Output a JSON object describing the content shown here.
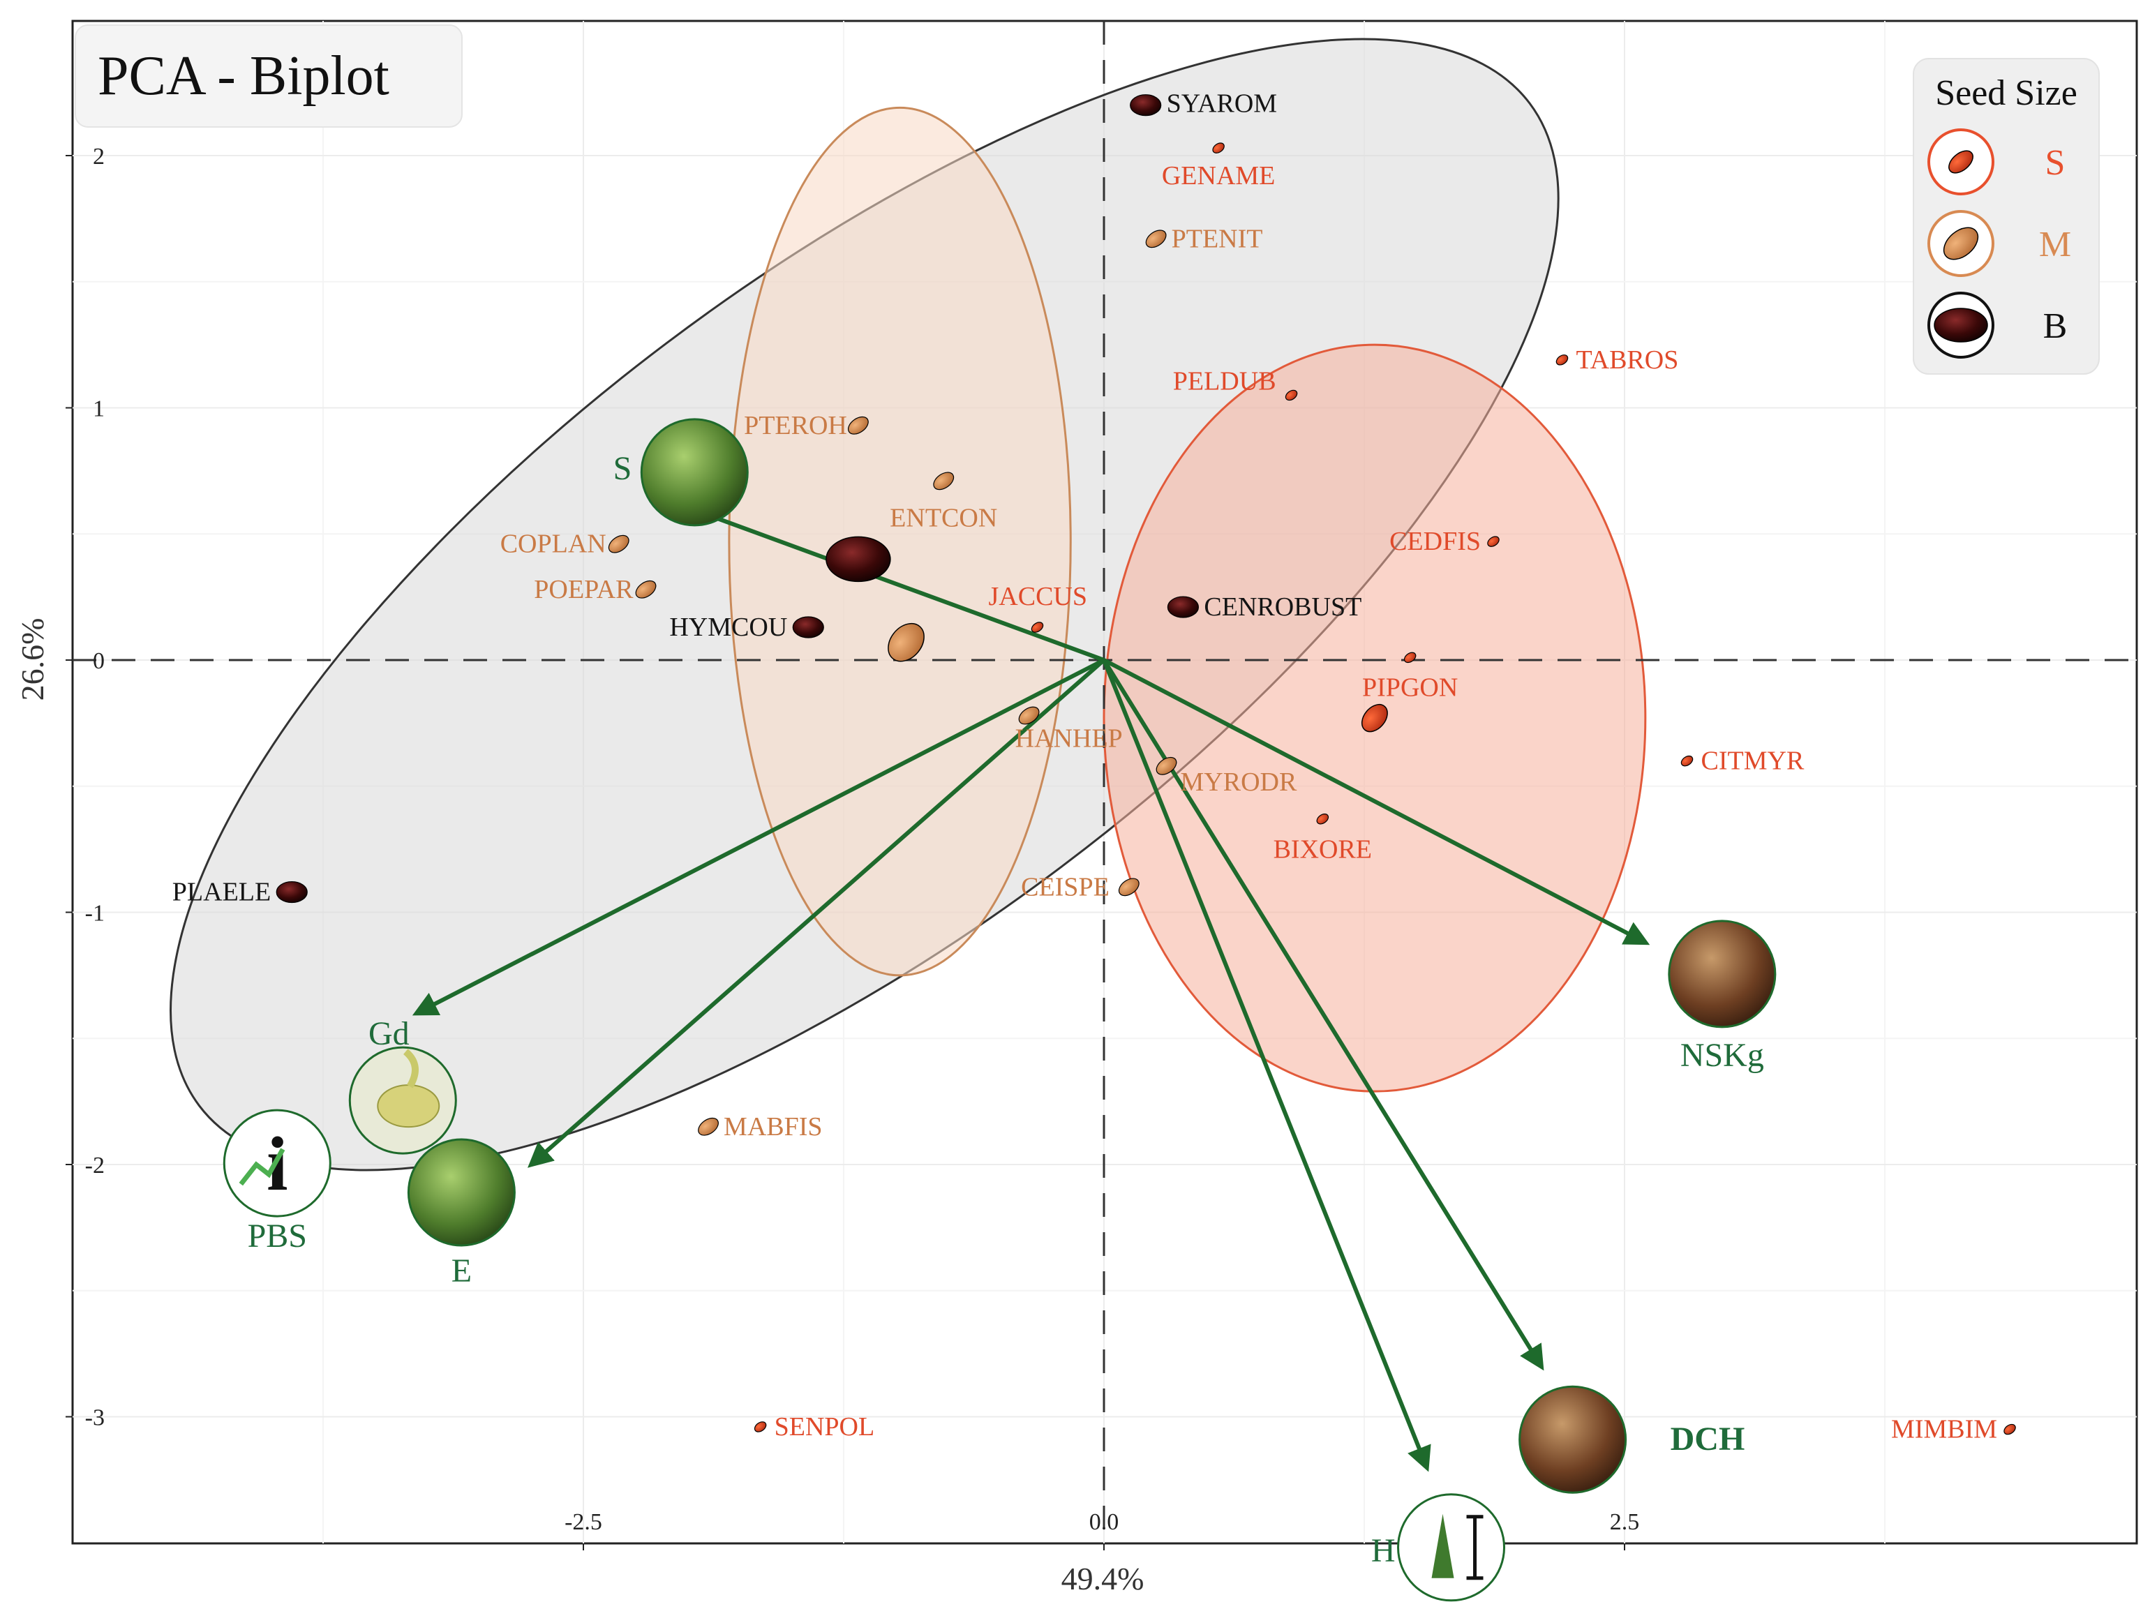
{
  "chart_data": {
    "type": "scatter",
    "title": "PCA - Biplot",
    "xlabel": "49.4%",
    "ylabel": "26.6%",
    "xlim": [
      -5,
      5
    ],
    "ylim": [
      -3.5,
      2.35
    ],
    "xticks": [
      -2.5,
      0.0,
      2.5
    ],
    "xtick_labels": [
      "-2.5",
      "0.0",
      "2.5"
    ],
    "yticks": [
      2,
      1,
      0,
      -1,
      -2,
      -3
    ],
    "ytick_labels": [
      "2",
      "1",
      "0",
      "-1",
      "-2",
      "-3"
    ],
    "legend": {
      "title": "Seed Size",
      "position": "top-right",
      "entries": [
        {
          "key": "S",
          "label": "S",
          "color": "#e8502d"
        },
        {
          "key": "M",
          "label": "M",
          "color": "#d88a52"
        },
        {
          "key": "B",
          "label": "B",
          "color": "#111111"
        }
      ]
    },
    "colors": {
      "S": "#e04a2a",
      "M": "#c97a45",
      "B": "#141414",
      "arrow": "#1e6a2c",
      "dch": "#ff7a1a"
    },
    "points": [
      {
        "label": "SYAROM",
        "x": 0.2,
        "y": 2.2,
        "size": "B"
      },
      {
        "label": "GENAME",
        "x": 0.55,
        "y": 2.03,
        "size": "S"
      },
      {
        "label": "PTENIT",
        "x": 0.25,
        "y": 1.67,
        "size": "M"
      },
      {
        "label": "TABROS",
        "x": 2.2,
        "y": 1.19,
        "size": "S"
      },
      {
        "label": "PELDUB",
        "x": 0.9,
        "y": 1.05,
        "size": "S"
      },
      {
        "label": "PTEROH",
        "x": -1.18,
        "y": 0.93,
        "size": "M"
      },
      {
        "label": "ENTCON",
        "x": -0.77,
        "y": 0.71,
        "size": "M"
      },
      {
        "label": "COPLAN",
        "x": -2.33,
        "y": 0.46,
        "size": "M"
      },
      {
        "label": "CEDFIS",
        "x": 1.87,
        "y": 0.47,
        "size": "S"
      },
      {
        "label": "POEPAR",
        "x": -2.2,
        "y": 0.28,
        "size": "M"
      },
      {
        "label": "JACCUS",
        "x": -0.32,
        "y": 0.13,
        "size": "S"
      },
      {
        "label": "CENROBUST",
        "x": 0.38,
        "y": 0.21,
        "size": "B"
      },
      {
        "label": "HYMCOU",
        "x": -1.42,
        "y": 0.13,
        "size": "B"
      },
      {
        "label": "PIPGON",
        "x": 1.47,
        "y": 0.01,
        "size": "S"
      },
      {
        "label": "HANHEP",
        "x": -0.36,
        "y": -0.22,
        "size": "M"
      },
      {
        "label": "MYRODR",
        "x": 0.3,
        "y": -0.42,
        "size": "M"
      },
      {
        "label": "CITMYR",
        "x": 2.8,
        "y": -0.4,
        "size": "S"
      },
      {
        "label": "BIXORE",
        "x": 1.05,
        "y": -0.63,
        "size": "S"
      },
      {
        "label": "CEISPE",
        "x": 0.12,
        "y": -0.9,
        "size": "M"
      },
      {
        "label": "PLAELE",
        "x": -3.9,
        "y": -0.92,
        "size": "B"
      },
      {
        "label": "MABFIS",
        "x": -1.9,
        "y": -1.85,
        "size": "M"
      },
      {
        "label": "SENPOL",
        "x": -1.65,
        "y": -3.04,
        "size": "S"
      },
      {
        "label": "MIMBIM",
        "x": 4.35,
        "y": -3.05,
        "size": "S"
      }
    ],
    "centroids": [
      {
        "group": "B",
        "x": -1.18,
        "y": 0.4
      },
      {
        "group": "M",
        "x": -0.95,
        "y": 0.07
      },
      {
        "group": "S",
        "x": 1.3,
        "y": -0.23
      }
    ],
    "ellipses": [
      {
        "group": "B",
        "cx": -1.15,
        "cy": 0.22,
        "a": 4.0,
        "b": 1.3,
        "angle_deg": 37,
        "fill": "#d9d9d9",
        "stroke": "#333333"
      },
      {
        "group": "M",
        "cx": -0.98,
        "cy": 0.47,
        "a": 0.82,
        "b": 1.72,
        "angle_deg": 0,
        "fill": "#f7d9c4",
        "stroke": "#c98a5a"
      },
      {
        "group": "S",
        "cx": 1.3,
        "cy": -0.23,
        "a": 1.3,
        "b": 1.48,
        "angle_deg": 0,
        "fill": "#f5b09c",
        "stroke": "#e25a3a"
      }
    ],
    "vectors": [
      {
        "label": "S",
        "x": -2.05,
        "y": 0.62
      },
      {
        "label": "Gd",
        "x": -3.3,
        "y": -1.4
      },
      {
        "label": "PBS",
        "x": -3.3,
        "y": -1.4
      },
      {
        "label": "E",
        "x": -2.75,
        "y": -2.0
      },
      {
        "label": "NSKg",
        "x": 2.6,
        "y": -1.12
      },
      {
        "label": "DCH",
        "x": 2.1,
        "y": -2.8
      },
      {
        "label": "H",
        "x": 1.55,
        "y": -3.2
      }
    ]
  }
}
